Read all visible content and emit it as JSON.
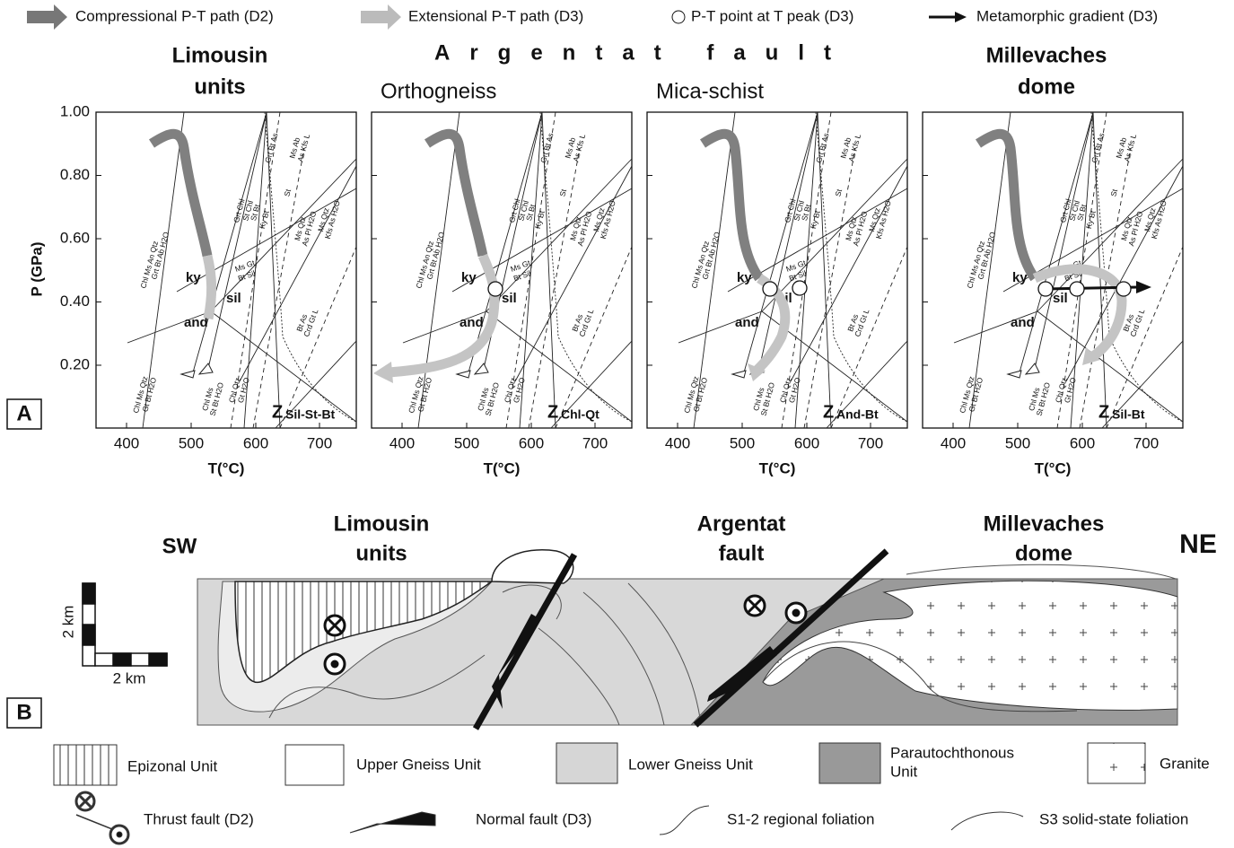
{
  "legend_top": [
    "Compressional P-T path (D2)",
    "Extensional P-T path (D3)",
    "P-T point at T peak (D3)",
    "Metamorphic gradient (D3)"
  ],
  "panel_a": {
    "label": "A",
    "fault_title": "Argentat fault",
    "y_axis_label": "P (GPa)",
    "yticks": [
      "1.00",
      "0.80",
      "0.60",
      "0.40",
      "0.20"
    ],
    "x_axis_label": "T(°C)",
    "xticks": [
      "400",
      "500",
      "600",
      "700"
    ],
    "fields": [
      "ky",
      "sil",
      "and"
    ],
    "reactions": [
      "Chl Ms An Qtz",
      "Grt Bt Ab H2O",
      "Grt Chl",
      "St Chl",
      "St Bt",
      "Ky Bt",
      "Grt Bt As",
      "St",
      "Ms Ab",
      "As Kfs L",
      "Ms Qtz",
      "As Pl H2O",
      "Ms Qtz",
      "Kfs As H2O",
      "Ms Gt",
      "Bt Sil",
      "Bt As",
      "Crd Gt L",
      "Chl Ms Qtz",
      "Gt Bt H2O",
      "Chl Ms",
      "St Bt H2O",
      "Chl Qtz",
      "Gt H2O"
    ],
    "panels": [
      {
        "heading": [
          "Limousin",
          "units"
        ],
        "zone": {
          "letter": "Z",
          "sub": "Sil-St-Bt"
        }
      },
      {
        "heading": [
          "Orthogneiss"
        ],
        "zone": {
          "letter": "Z",
          "sub": "Chl-Qt"
        }
      },
      {
        "heading": [
          "Mica-schist"
        ],
        "zone": {
          "letter": "Z",
          "sub": "And-Bt"
        }
      },
      {
        "heading": [
          "Millevaches",
          "dome"
        ],
        "zone": {
          "letter": "Z",
          "sub": "Sil-Bt"
        }
      }
    ]
  },
  "panel_b": {
    "label": "B",
    "sw": "SW",
    "ne": "NE",
    "headings": [
      [
        "Limousin",
        "units"
      ],
      [
        "Argentat",
        "fault"
      ],
      [
        "Millevaches",
        "dome"
      ]
    ],
    "scale": "2 km",
    "legend": [
      "Epizonal Unit",
      "Upper Gneiss Unit",
      "Lower Gneiss Unit",
      [
        "Parautochthonous",
        "Unit"
      ],
      "Granite",
      "Thrust fault (D2)",
      "Normal fault (D3)",
      "S1-2 regional foliation",
      "S3 solid-state foliation"
    ]
  }
}
